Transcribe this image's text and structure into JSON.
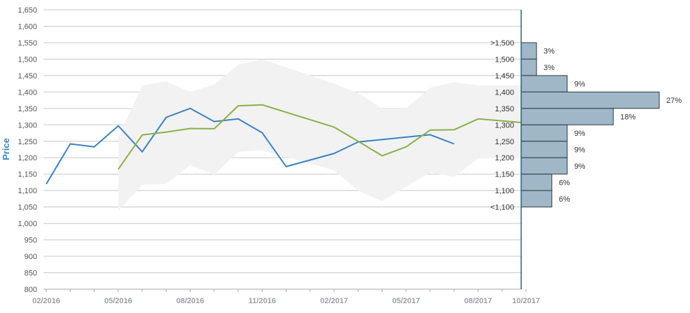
{
  "colors": {
    "series_blue": "#3a82c4",
    "series_green": "#8ab04a",
    "band": "#f2f2f2",
    "histogram_fill": "#9fb7c6",
    "histogram_stroke": "#2f3b44",
    "grid": "#c8c8c8"
  },
  "chart_data": {
    "type": "line",
    "ylabel": "Price",
    "ylim": [
      800,
      1650
    ],
    "yticks": [
      "800",
      "850",
      "900",
      "950",
      "1,000",
      "1,050",
      "1,100",
      "1,150",
      "1,200",
      "1,250",
      "1,300",
      "1,350",
      "1,400",
      "1,450",
      "1,500",
      "1,550",
      "1,600",
      "1,650"
    ],
    "ytick_values": [
      800,
      850,
      900,
      950,
      1000,
      1050,
      1100,
      1150,
      1200,
      1250,
      1300,
      1350,
      1400,
      1450,
      1500,
      1550,
      1600,
      1650
    ],
    "x_tick_labels": [
      "02/2016",
      "05/2016",
      "08/2016",
      "11/2016",
      "02/2017",
      "05/2017",
      "08/2017",
      "10/2017"
    ],
    "x_tick_months": [
      0,
      3,
      6,
      9,
      12,
      15,
      18,
      20
    ],
    "xlim_months": [
      0,
      20.3
    ],
    "grid": true,
    "series": [
      {
        "color": "#3a82c4",
        "points": [
          [
            0,
            1120
          ],
          [
            1,
            1242
          ],
          [
            2,
            1233
          ],
          [
            3,
            1297
          ],
          [
            4,
            1218
          ],
          [
            5,
            1323
          ],
          [
            6,
            1350
          ],
          [
            7,
            1310
          ],
          [
            8,
            1318
          ],
          [
            9,
            1276
          ],
          [
            10,
            1173
          ],
          [
            12,
            1213
          ],
          [
            13,
            1248
          ],
          [
            16,
            1270
          ],
          [
            17,
            1242
          ]
        ]
      },
      {
        "color": "#8ab04a",
        "points": [
          [
            3,
            1165
          ],
          [
            4,
            1269
          ],
          [
            5,
            1278
          ],
          [
            6,
            1289
          ],
          [
            7,
            1288
          ],
          [
            8,
            1358
          ],
          [
            9,
            1361
          ],
          [
            12,
            1293
          ],
          [
            13,
            1250
          ],
          [
            14,
            1206
          ],
          [
            15,
            1233
          ],
          [
            16,
            1284
          ],
          [
            17,
            1285
          ],
          [
            18,
            1318
          ],
          [
            20.3,
            1304
          ]
        ]
      }
    ],
    "band": {
      "upper": [
        [
          3,
          1262
        ],
        [
          4,
          1420
        ],
        [
          5,
          1432
        ],
        [
          6,
          1400
        ],
        [
          7,
          1423
        ],
        [
          8,
          1483
        ],
        [
          9,
          1500
        ],
        [
          12,
          1425
        ],
        [
          13,
          1397
        ],
        [
          14,
          1350
        ],
        [
          15,
          1350
        ],
        [
          16,
          1413
        ],
        [
          17,
          1430
        ],
        [
          18,
          1420
        ],
        [
          20.3,
          1420
        ]
      ],
      "lower": [
        [
          3,
          1038
        ],
        [
          4,
          1118
        ],
        [
          5,
          1120
        ],
        [
          6,
          1178
        ],
        [
          7,
          1148
        ],
        [
          8,
          1218
        ],
        [
          9,
          1222
        ],
        [
          12,
          1162
        ],
        [
          13,
          1100
        ],
        [
          14,
          1068
        ],
        [
          15,
          1112
        ],
        [
          16,
          1155
        ],
        [
          17,
          1142
        ],
        [
          18,
          1198
        ],
        [
          20.3,
          1198
        ]
      ]
    },
    "distribution": [
      {
        "label": ">1,500",
        "low": 1500,
        "high": 1550,
        "percent": 3,
        "text": "3%"
      },
      {
        "label": "1,500",
        "low": 1450,
        "high": 1500,
        "percent": 3,
        "text": "3%"
      },
      {
        "label": "1,450",
        "low": 1400,
        "high": 1450,
        "percent": 9,
        "text": "9%"
      },
      {
        "label": "1,400",
        "low": 1350,
        "high": 1400,
        "percent": 27,
        "text": "27%"
      },
      {
        "label": "1,350",
        "low": 1300,
        "high": 1350,
        "percent": 18,
        "text": "18%"
      },
      {
        "label": "1,300",
        "low": 1250,
        "high": 1300,
        "percent": 9,
        "text": "9%"
      },
      {
        "label": "1,250",
        "low": 1200,
        "high": 1250,
        "percent": 9,
        "text": "9%"
      },
      {
        "label": "1,200",
        "low": 1150,
        "high": 1200,
        "percent": 9,
        "text": "9%"
      },
      {
        "label": "1,150",
        "low": 1100,
        "high": 1150,
        "percent": 6,
        "text": "6%"
      },
      {
        "label": "1,100",
        "low": 1050,
        "high": 1100,
        "percent": 6,
        "text": "6%"
      },
      {
        "label": "<1,100",
        "low": 1050,
        "high": 1050,
        "percent": 0,
        "text": ""
      }
    ]
  }
}
